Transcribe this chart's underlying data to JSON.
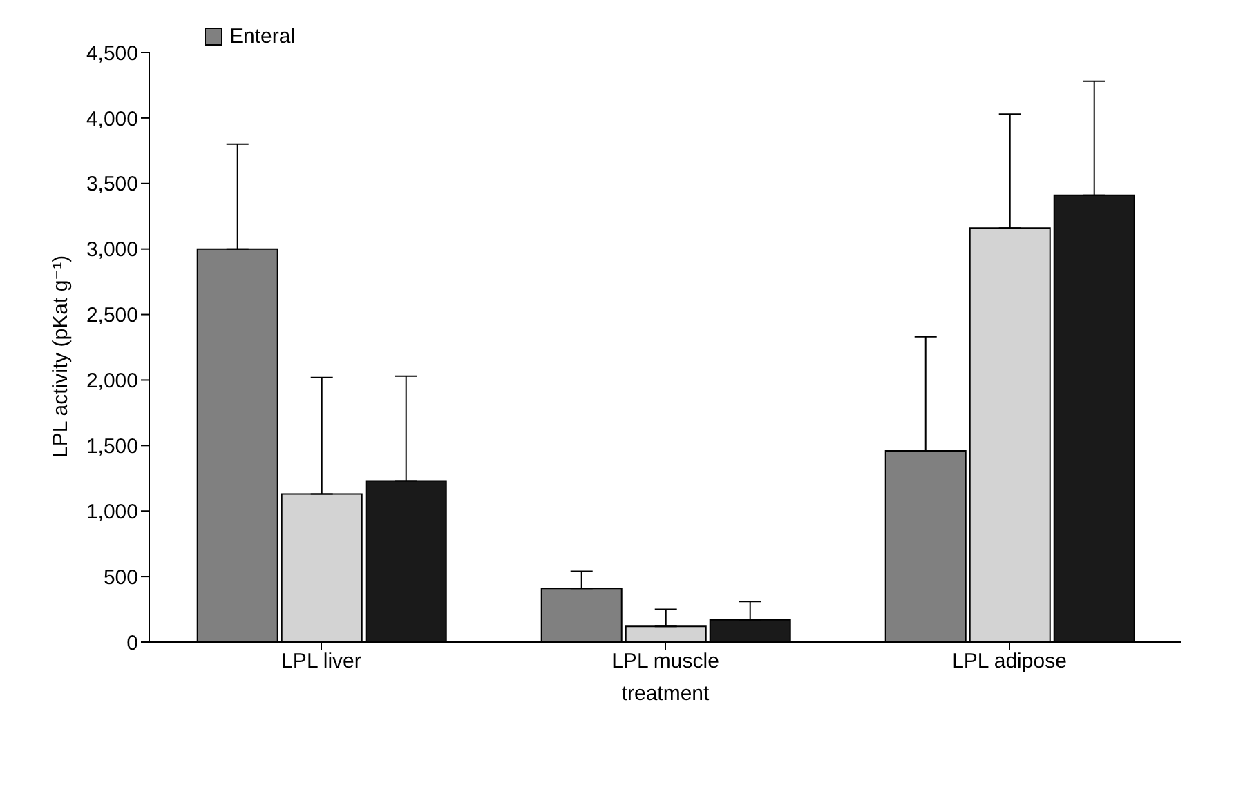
{
  "chart_data": {
    "type": "bar",
    "xlabel": "treatment",
    "ylabel": "LPL activity (pKat g⁻¹)",
    "categories": [
      "LPL liver",
      "LPL muscle",
      "LPL adipose"
    ],
    "series": [
      {
        "name": "Enteral",
        "color": "#808080",
        "values": [
          3000,
          410,
          1460
        ],
        "errors": [
          [
            3000,
            3800
          ],
          [
            410,
            540
          ],
          [
            1460,
            2330
          ]
        ]
      },
      {
        "color": "#d3d3d3",
        "values": [
          1130,
          120,
          3160
        ],
        "errors": [
          [
            1130,
            2020
          ],
          [
            120,
            250
          ],
          [
            3160,
            4030
          ]
        ]
      },
      {
        "color": "#1a1a1a",
        "values": [
          1230,
          170,
          3410
        ],
        "errors": [
          [
            1230,
            2030
          ],
          [
            170,
            310
          ],
          [
            3410,
            4280
          ]
        ]
      }
    ],
    "ylim": [
      0,
      4500
    ],
    "yticks": [
      0,
      {
        "value": 500,
        "label": "500"
      },
      {
        "value": 1000,
        "label": "1,000"
      },
      {
        "value": 1500,
        "label": "1,500"
      },
      {
        "value": 2000,
        "label": "2,000"
      },
      {
        "value": 2500,
        "label": "2,500"
      },
      {
        "value": 3000,
        "label": "3,000"
      },
      {
        "value": 3500,
        "label": "3,500"
      },
      {
        "value": 4000,
        "label": "4,000"
      },
      {
        "value": 4500,
        "label": "4,500"
      }
    ],
    "grid": false,
    "legend": "top left"
  }
}
